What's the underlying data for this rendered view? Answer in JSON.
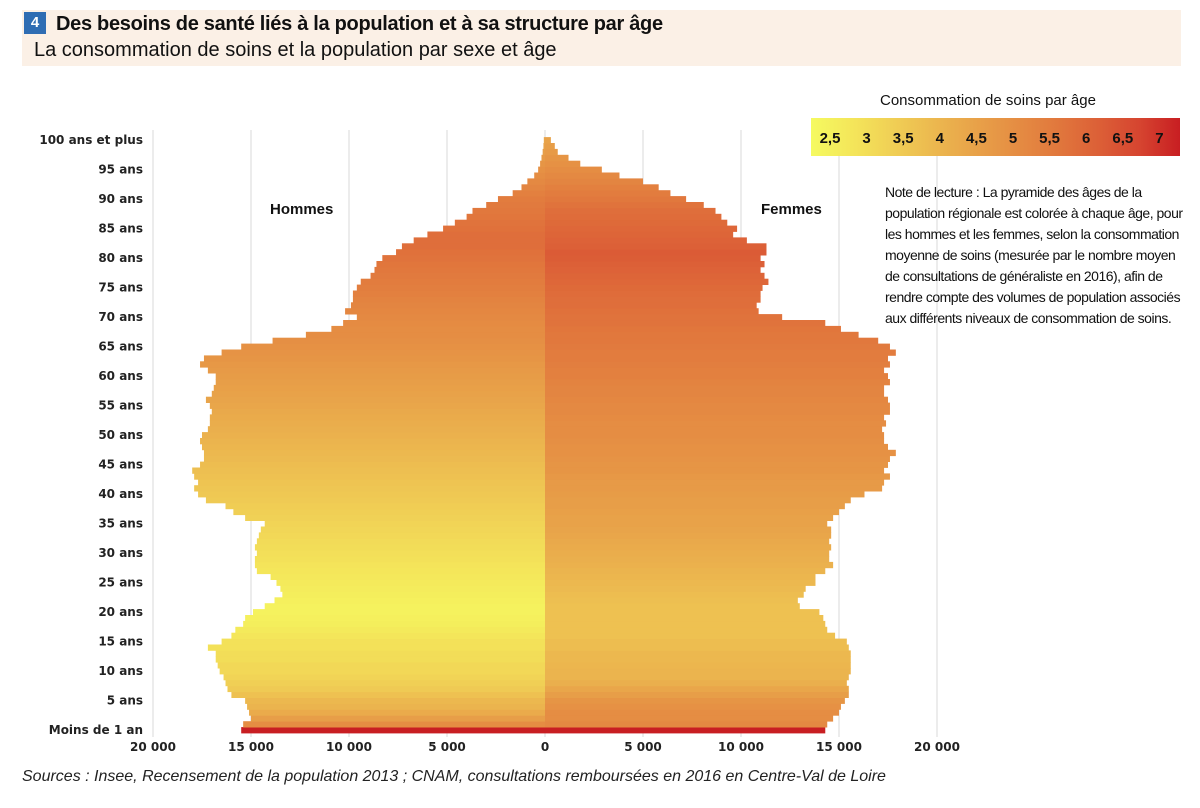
{
  "header": {
    "number": "4",
    "title": "Des besoins de santé liés à la population et à sa structure par âge",
    "subtitle": "La consommation de soins et la population par sexe et âge"
  },
  "legend": {
    "title": "Consommation de soins par âge",
    "ticks": [
      "2,5",
      "3",
      "3,5",
      "4",
      "4,5",
      "5",
      "5,5",
      "6",
      "6,5",
      "7"
    ],
    "color_stops": [
      "#f5fa60",
      "#f4e65a",
      "#f0cf55",
      "#ecb84f",
      "#e8a249",
      "#e58d43",
      "#e1783d",
      "#dc6037",
      "#d64530",
      "#c81e22"
    ]
  },
  "note": "Note de lecture : La pyramide des âges de la population régionale est colorée à chaque âge, pour les hommes et les femmes, selon la consommation moyenne de soins (mesurée par le nombre moyen de consultations de généraliste en 2016), afin de rendre compte des volumes de population associés aux différents niveaux de consommation de soins.",
  "source": "Sources : Insee, Recensement de la population 2013 ; CNAM, consultations remboursées en 2016 en Centre-Val de Loire",
  "chart_data": {
    "type": "bar",
    "orientation": "horizontal-pyramid",
    "x_range": [
      -20000,
      20000
    ],
    "x_ticks": [
      -20000,
      -15000,
      -10000,
      -5000,
      0,
      5000,
      10000,
      15000,
      20000
    ],
    "x_tick_labels": [
      "20 000",
      "15 000",
      "10 000",
      "5 000",
      "0",
      "5 000",
      "10 000",
      "15 000",
      "20 000"
    ],
    "y_tick_labels": [
      {
        "age": 0,
        "label": "Moins de 1 an"
      },
      {
        "age": 5,
        "label": "5 ans"
      },
      {
        "age": 10,
        "label": "10 ans"
      },
      {
        "age": 15,
        "label": "15 ans"
      },
      {
        "age": 20,
        "label": "20 ans"
      },
      {
        "age": 25,
        "label": "25 ans"
      },
      {
        "age": 30,
        "label": "30 ans"
      },
      {
        "age": 35,
        "label": "35 ans"
      },
      {
        "age": 40,
        "label": "40 ans"
      },
      {
        "age": 45,
        "label": "45 ans"
      },
      {
        "age": 50,
        "label": "50 ans"
      },
      {
        "age": 55,
        "label": "55 ans"
      },
      {
        "age": 60,
        "label": "60 ans"
      },
      {
        "age": 65,
        "label": "65 ans"
      },
      {
        "age": 70,
        "label": "70 ans"
      },
      {
        "age": 75,
        "label": "75 ans"
      },
      {
        "age": 80,
        "label": "80 ans"
      },
      {
        "age": 85,
        "label": "85 ans"
      },
      {
        "age": 90,
        "label": "90 ans"
      },
      {
        "age": 95,
        "label": "95 ans"
      },
      {
        "age": 100,
        "label": "100 ans et plus"
      }
    ],
    "series": [
      {
        "name": "Hommes",
        "values": [
          15500,
          15400,
          15000,
          15100,
          15200,
          15300,
          16000,
          16200,
          16300,
          16400,
          16600,
          16700,
          16800,
          16800,
          17200,
          16500,
          16000,
          15800,
          15400,
          15300,
          14900,
          14300,
          13800,
          13400,
          13500,
          13700,
          14000,
          14700,
          14800,
          14800,
          14700,
          14800,
          14700,
          14600,
          14500,
          14300,
          15300,
          15900,
          16300,
          17300,
          17700,
          17900,
          17700,
          17900,
          18000,
          17600,
          17400,
          17400,
          17500,
          17600,
          17500,
          17200,
          17100,
          17100,
          17000,
          17100,
          17300,
          17000,
          16900,
          16800,
          16800,
          17200,
          17600,
          17400,
          16500,
          15500,
          13900,
          12200,
          10900,
          10300,
          9600,
          10200,
          9900,
          9800,
          9800,
          9600,
          9400,
          8900,
          8700,
          8600,
          8300,
          7600,
          7300,
          6700,
          6000,
          5200,
          4600,
          4000,
          3700,
          3000,
          2400,
          1650,
          1200,
          900,
          550,
          350,
          250,
          180,
          120,
          80,
          60
        ],
        "consumption": [
          7,
          5,
          4.6,
          4.3,
          4.1,
          4,
          3.8,
          3.6,
          3.5,
          3.4,
          3.3,
          3.3,
          3.2,
          3.2,
          3.1,
          3.1,
          3,
          2.9,
          2.8,
          2.75,
          2.7,
          2.7,
          2.75,
          2.8,
          2.85,
          2.9,
          2.95,
          3,
          3.05,
          3.1,
          3.15,
          3.2,
          3.25,
          3.3,
          3.35,
          3.4,
          3.45,
          3.5,
          3.55,
          3.6,
          3.65,
          3.7,
          3.75,
          3.8,
          3.85,
          3.9,
          3.95,
          4,
          4.05,
          4.1,
          4.15,
          4.2,
          4.25,
          4.3,
          4.35,
          4.4,
          4.45,
          4.5,
          4.55,
          4.6,
          4.65,
          4.7,
          4.75,
          4.8,
          4.85,
          4.9,
          4.95,
          5,
          5,
          5.05,
          5.1,
          5.15,
          5.2,
          5.25,
          5.3,
          5.35,
          5.4,
          5.45,
          5.5,
          5.55,
          5.6,
          5.65,
          5.7,
          5.7,
          5.7,
          5.65,
          5.6,
          5.55,
          5.5,
          5.45,
          5.4,
          5.3,
          5.2,
          5.1,
          5,
          4.9,
          4.8,
          4.7,
          4.6,
          4.5,
          4.4
        ]
      },
      {
        "name": "Femmes",
        "values": [
          14300,
          14400,
          14700,
          15000,
          15100,
          15300,
          15500,
          15500,
          15400,
          15500,
          15600,
          15600,
          15600,
          15600,
          15500,
          15400,
          14800,
          14400,
          14300,
          14200,
          14000,
          13000,
          12900,
          13200,
          13300,
          13800,
          13800,
          14300,
          14700,
          14500,
          14500,
          14600,
          14500,
          14600,
          14600,
          14400,
          14700,
          15000,
          15300,
          15600,
          16300,
          17200,
          17300,
          17600,
          17300,
          17500,
          17600,
          17900,
          17500,
          17300,
          17300,
          17200,
          17400,
          17300,
          17600,
          17600,
          17500,
          17300,
          17300,
          17600,
          17500,
          17300,
          17600,
          17500,
          17900,
          17600,
          17000,
          16000,
          15100,
          14300,
          12100,
          10900,
          10800,
          11000,
          11000,
          11100,
          11400,
          11200,
          11000,
          11200,
          11000,
          11300,
          11300,
          10300,
          9600,
          9800,
          9300,
          9000,
          8700,
          8100,
          7200,
          6400,
          5800,
          5000,
          3800,
          2900,
          1800,
          1200,
          650,
          500,
          300
        ],
        "consumption": [
          7,
          5.1,
          5,
          5,
          4.9,
          4.8,
          4.6,
          4.4,
          4.2,
          4.1,
          4.1,
          4.05,
          4,
          4,
          3.9,
          3.9,
          3.8,
          3.8,
          3.8,
          3.8,
          3.8,
          3.8,
          3.85,
          3.9,
          3.95,
          4,
          4.05,
          4.1,
          4.15,
          4.2,
          4.25,
          4.3,
          4.35,
          4.4,
          4.45,
          4.5,
          4.5,
          4.55,
          4.6,
          4.6,
          4.65,
          4.7,
          4.7,
          4.75,
          4.8,
          4.8,
          4.85,
          4.9,
          4.9,
          4.95,
          5,
          5,
          5,
          5.05,
          5.1,
          5.1,
          5.15,
          5.2,
          5.2,
          5.25,
          5.3,
          5.3,
          5.35,
          5.4,
          5.4,
          5.45,
          5.5,
          5.5,
          5.55,
          5.6,
          5.6,
          5.65,
          5.7,
          5.7,
          5.75,
          5.8,
          5.85,
          5.9,
          5.95,
          6,
          6.05,
          6.1,
          6,
          5.95,
          5.9,
          5.85,
          5.8,
          5.75,
          5.7,
          5.6,
          5.5,
          5.4,
          5.3,
          5.2,
          5.1,
          5,
          4.9,
          4.8,
          4.7,
          4.6,
          4.5
        ]
      }
    ]
  },
  "labels": {
    "men": "Hommes",
    "women": "Femmes"
  }
}
